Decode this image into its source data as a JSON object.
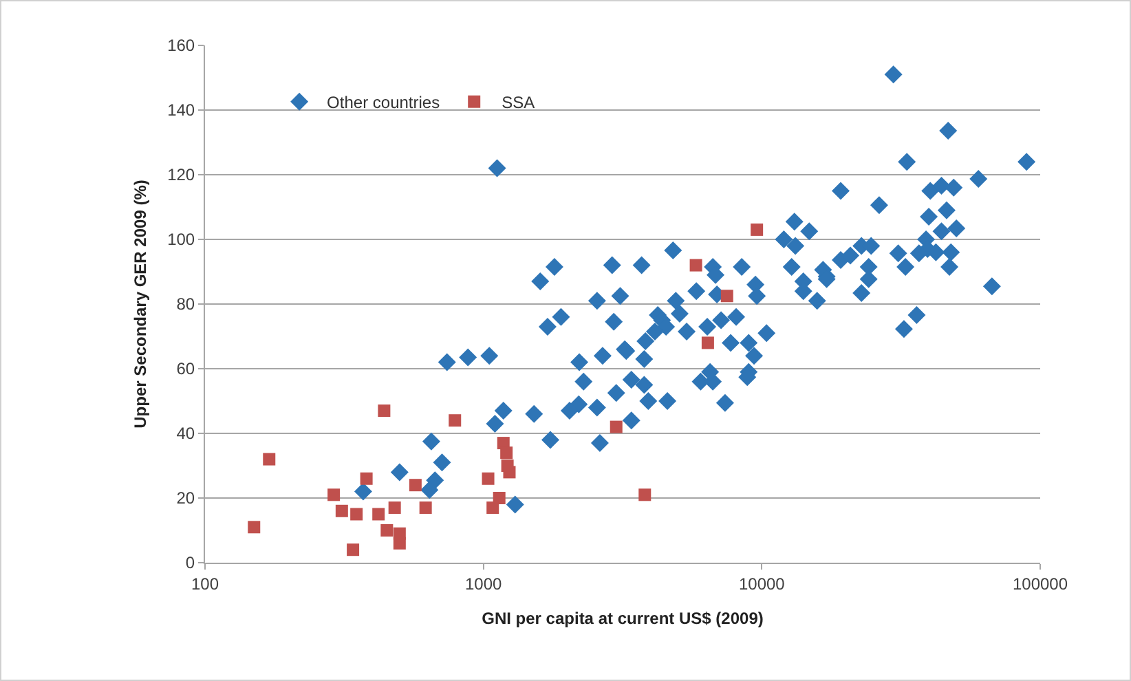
{
  "chart_data": {
    "type": "scatter",
    "xlabel": "GNI per capita at current US$ (2009)",
    "ylabel": "Upper Secondary GER 2009 (%)",
    "log": "x",
    "xlim": [
      100,
      100000
    ],
    "xticks": [
      100,
      1000,
      10000,
      100000
    ],
    "ylim": [
      0,
      160
    ],
    "yticks": [
      0,
      20,
      40,
      60,
      80,
      100,
      120,
      140,
      160
    ],
    "grid": "y",
    "legend": "top left",
    "series": [
      {
        "name": "Other countries",
        "color": "#2e75b6",
        "marker": "diamond",
        "x": [
          1800,
          1600,
          2900,
          1900,
          1700,
          2560,
          3100,
          2940,
          2210,
          2680,
          3220,
          2290,
          3000,
          2200,
          2040,
          2560,
          3400,
          2620,
          1740,
          1520,
          1180,
          1100,
          1300,
          740,
          880,
          1050,
          650,
          710,
          670,
          640,
          500,
          370,
          3700,
          4800,
          4230,
          4380,
          4910,
          4530,
          3820,
          4130,
          5070,
          5370,
          3780,
          3260,
          3400,
          3780,
          3910,
          4580,
          5820,
          6670,
          6820,
          6900,
          6370,
          7140,
          8090,
          7730,
          8970,
          9380,
          8970,
          8870,
          7380,
          6030,
          6670,
          6520,
          8470,
          9490,
          9600,
          10400,
          12000,
          13100,
          14800,
          13200,
          12800,
          14100,
          14100,
          15800,
          17100,
          19200,
          22800,
          29700,
          46700,
          33200,
          89300,
          60000,
          19200,
          40300,
          44200,
          48900,
          26400,
          39800,
          46100,
          44200,
          50000,
          38900,
          39400,
          36700,
          42200,
          47800,
          47200,
          30900,
          32800,
          24700,
          20800,
          16600,
          24200,
          24200,
          22800,
          17100,
          67100,
          36000,
          32400,
          1120
        ],
        "values": [
          91.5,
          87,
          92,
          76,
          73,
          81,
          82.5,
          74.5,
          62,
          64,
          66,
          56,
          52.5,
          49,
          47,
          48,
          44,
          37,
          38,
          46,
          47,
          43,
          18,
          62,
          63.5,
          64,
          37.5,
          31,
          25.5,
          22.5,
          28,
          22,
          92,
          96.6,
          76.6,
          75,
          81,
          73,
          68.5,
          71.5,
          77,
          71.5,
          63,
          65.5,
          56.6,
          55,
          50,
          50,
          84,
          91.5,
          89,
          83,
          73,
          75,
          76,
          68,
          68,
          64,
          59,
          57.4,
          49.4,
          56,
          56,
          59,
          91.5,
          86,
          82.5,
          71,
          100,
          105.5,
          102.5,
          98,
          91.5,
          87,
          84,
          81,
          88.5,
          93.6,
          98,
          151,
          133.6,
          124,
          124,
          118.7,
          115,
          115,
          116.6,
          116,
          110.6,
          107,
          109,
          102.5,
          103.4,
          100,
          97,
          95.7,
          96,
          96,
          91.5,
          95.7,
          91.5,
          98,
          95,
          90.6,
          91.5,
          87.7,
          83.4,
          87.7,
          85.5,
          76.6,
          72.3,
          122
        ]
      },
      {
        "name": "SSA",
        "color": "#c0504d",
        "marker": "square",
        "x": [
          150,
          170,
          290,
          310,
          350,
          340,
          380,
          440,
          420,
          480,
          450,
          500,
          500,
          570,
          620,
          790,
          1040,
          1080,
          1140,
          1180,
          1210,
          1220,
          1240,
          3000,
          3800,
          5800,
          7500,
          6400,
          9600
        ],
        "values": [
          11,
          32,
          21,
          16,
          15,
          4,
          26,
          47,
          15,
          17,
          10,
          9,
          6,
          24,
          17,
          44,
          26,
          17,
          20,
          37,
          34,
          30,
          28,
          42,
          21,
          92,
          82.5,
          68,
          103
        ]
      }
    ]
  }
}
